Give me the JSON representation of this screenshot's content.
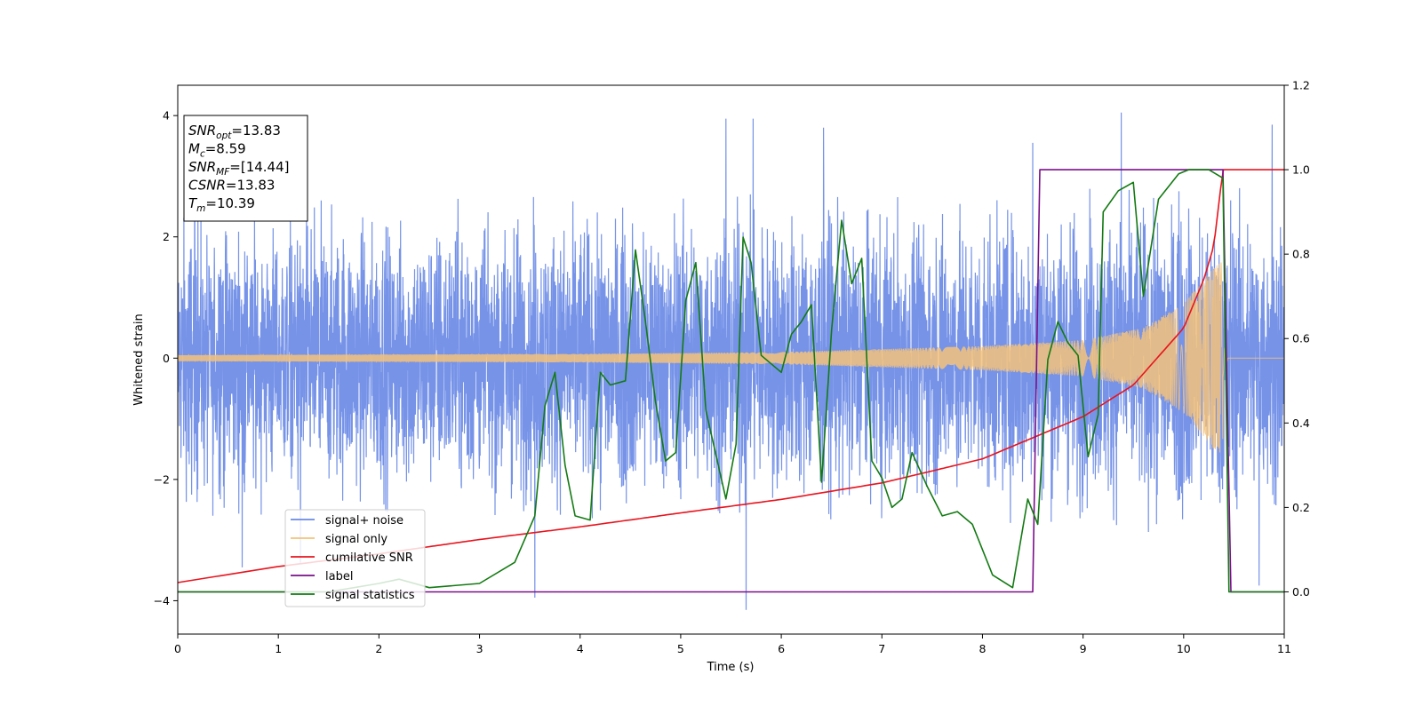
{
  "chart_data": {
    "type": "line",
    "title": "",
    "xlabel": "Time (s)",
    "ylabel": "Whitened strain",
    "ylabel_right": "",
    "xlim": [
      0,
      11
    ],
    "ylim_left": [
      -4.55,
      4.5
    ],
    "ylim_right": [
      -0.1,
      1.2
    ],
    "x_ticks": [
      0,
      1,
      2,
      3,
      4,
      5,
      6,
      7,
      8,
      9,
      10,
      11
    ],
    "y_ticks_left": [
      -4,
      -2,
      0,
      2,
      4
    ],
    "y_ticks_right": [
      0.0,
      0.2,
      0.4,
      0.6,
      0.8,
      1.0,
      1.2
    ],
    "y_tick_labels_right": [
      "0.0",
      "0.2",
      "0.4",
      "0.6",
      "0.8",
      "1.0",
      "1.2"
    ],
    "grid": false,
    "legend_position": "lower-left",
    "info_box": {
      "lines": [
        {
          "sym": "SNR",
          "sub": "opt",
          "value": "=13.83"
        },
        {
          "sym": "M",
          "sub": "c",
          "value": "=8.59"
        },
        {
          "sym": "SNR",
          "sub": "MF",
          "value": "=[14.44]"
        },
        {
          "sym": "CSNR",
          "sub": "",
          "value": "=13.83"
        },
        {
          "sym": "T",
          "sub": "m",
          "value": "=10.39"
        }
      ]
    },
    "series": [
      {
        "name": "signal+ noise",
        "axis": "left",
        "color": "#6a8ae6",
        "kind": "noise",
        "envelope": [
          [
            0,
            2.6
          ],
          [
            2,
            2.6
          ],
          [
            4,
            2.7
          ],
          [
            6,
            2.7
          ],
          [
            8,
            2.7
          ],
          [
            9,
            2.8
          ],
          [
            10,
            3.0
          ],
          [
            10.4,
            3.0
          ],
          [
            11,
            2.5
          ]
        ],
        "extremes": [
          [
            0.2,
            2.5
          ],
          [
            0.35,
            -2.6
          ],
          [
            0.64,
            -3.45
          ],
          [
            1.22,
            -3.4
          ],
          [
            3.55,
            -3.95
          ],
          [
            5.45,
            3.95
          ],
          [
            5.65,
            -4.15
          ],
          [
            5.72,
            3.95
          ],
          [
            6.42,
            3.8
          ],
          [
            8.5,
            3.55
          ],
          [
            9.38,
            4.05
          ],
          [
            10.75,
            -3.75
          ],
          [
            10.88,
            3.85
          ]
        ]
      },
      {
        "name": "signal only",
        "axis": "left",
        "color": "#f5c27a",
        "kind": "chirp",
        "t_merge": 10.39,
        "amplitude_points": [
          [
            0,
            0.05
          ],
          [
            4,
            0.07
          ],
          [
            6,
            0.1
          ],
          [
            8,
            0.2
          ],
          [
            9,
            0.3
          ],
          [
            9.6,
            0.5
          ],
          [
            10.0,
            0.9
          ],
          [
            10.3,
            1.5
          ],
          [
            10.39,
            1.6
          ]
        ]
      },
      {
        "name": "cumilative SNR",
        "axis": "right",
        "color": "#e8141e",
        "points": [
          [
            0,
            0.022
          ],
          [
            1,
            0.06
          ],
          [
            2,
            0.09
          ],
          [
            3,
            0.124
          ],
          [
            4,
            0.154
          ],
          [
            5,
            0.187
          ],
          [
            6,
            0.219
          ],
          [
            7,
            0.258
          ],
          [
            8,
            0.315
          ],
          [
            9,
            0.415
          ],
          [
            9.5,
            0.49
          ],
          [
            10.0,
            0.625
          ],
          [
            10.2,
            0.74
          ],
          [
            10.3,
            0.82
          ],
          [
            10.39,
            1.0
          ],
          [
            11,
            1.0
          ]
        ]
      },
      {
        "name": "label",
        "axis": "right",
        "color": "#7a0f8a",
        "points": [
          [
            0,
            0.0
          ],
          [
            8.5,
            0.0
          ],
          [
            8.57,
            1.0
          ],
          [
            10.39,
            1.0
          ],
          [
            10.47,
            0.0
          ],
          [
            11,
            0.0
          ]
        ]
      },
      {
        "name": "signal statistics",
        "axis": "right",
        "color": "#137a13",
        "points": [
          [
            0,
            0.0
          ],
          [
            1.5,
            0.0
          ],
          [
            2.0,
            0.02
          ],
          [
            2.2,
            0.03
          ],
          [
            2.5,
            0.01
          ],
          [
            3.0,
            0.02
          ],
          [
            3.35,
            0.07
          ],
          [
            3.55,
            0.18
          ],
          [
            3.65,
            0.44
          ],
          [
            3.75,
            0.52
          ],
          [
            3.85,
            0.3
          ],
          [
            3.95,
            0.18
          ],
          [
            4.1,
            0.17
          ],
          [
            4.2,
            0.52
          ],
          [
            4.3,
            0.49
          ],
          [
            4.45,
            0.5
          ],
          [
            4.55,
            0.81
          ],
          [
            4.65,
            0.64
          ],
          [
            4.75,
            0.45
          ],
          [
            4.85,
            0.31
          ],
          [
            4.95,
            0.33
          ],
          [
            5.05,
            0.69
          ],
          [
            5.15,
            0.78
          ],
          [
            5.25,
            0.43
          ],
          [
            5.45,
            0.22
          ],
          [
            5.55,
            0.35
          ],
          [
            5.62,
            0.84
          ],
          [
            5.7,
            0.78
          ],
          [
            5.8,
            0.56
          ],
          [
            6.0,
            0.52
          ],
          [
            6.1,
            0.61
          ],
          [
            6.2,
            0.64
          ],
          [
            6.3,
            0.68
          ],
          [
            6.4,
            0.26
          ],
          [
            6.5,
            0.62
          ],
          [
            6.6,
            0.88
          ],
          [
            6.7,
            0.73
          ],
          [
            6.8,
            0.79
          ],
          [
            6.9,
            0.31
          ],
          [
            7.0,
            0.27
          ],
          [
            7.1,
            0.2
          ],
          [
            7.2,
            0.22
          ],
          [
            7.3,
            0.33
          ],
          [
            7.45,
            0.25
          ],
          [
            7.6,
            0.18
          ],
          [
            7.75,
            0.19
          ],
          [
            7.9,
            0.16
          ],
          [
            8.1,
            0.04
          ],
          [
            8.3,
            0.01
          ],
          [
            8.45,
            0.22
          ],
          [
            8.55,
            0.16
          ],
          [
            8.65,
            0.55
          ],
          [
            8.75,
            0.64
          ],
          [
            8.85,
            0.59
          ],
          [
            8.95,
            0.56
          ],
          [
            9.05,
            0.32
          ],
          [
            9.15,
            0.42
          ],
          [
            9.2,
            0.9
          ],
          [
            9.35,
            0.95
          ],
          [
            9.5,
            0.97
          ],
          [
            9.6,
            0.7
          ],
          [
            9.75,
            0.93
          ],
          [
            9.85,
            0.96
          ],
          [
            9.95,
            0.99
          ],
          [
            10.05,
            1.0
          ],
          [
            10.25,
            1.0
          ],
          [
            10.39,
            0.98
          ],
          [
            10.45,
            0.0
          ],
          [
            11,
            0.0
          ]
        ]
      }
    ]
  }
}
